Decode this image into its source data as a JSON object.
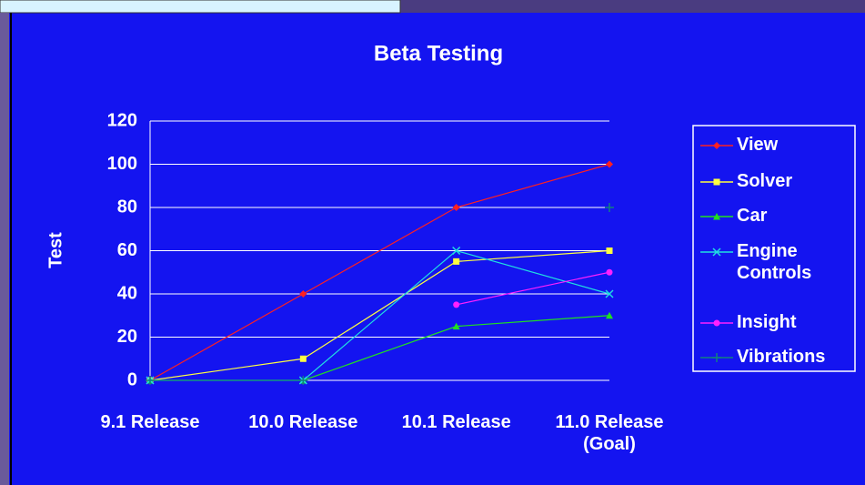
{
  "chart_data": {
    "type": "line",
    "title": "Beta Testing",
    "y_label": "Test",
    "categories": [
      "9.1 Release",
      "10.0 Release",
      "10.1 Release",
      "11.0 Release (Goal)"
    ],
    "series": [
      {
        "name": "View",
        "color": "#ff2020",
        "marker": "diamond",
        "values": [
          0,
          40,
          80,
          100
        ]
      },
      {
        "name": "Solver",
        "color": "#ffff40",
        "marker": "square",
        "values": [
          0,
          10,
          55,
          60
        ]
      },
      {
        "name": "Car",
        "color": "#20e020",
        "marker": "triangle",
        "values": [
          0,
          0,
          25,
          30
        ]
      },
      {
        "name": "Engine Controls",
        "color": "#20e0e0",
        "marker": "x",
        "values": [
          0,
          0,
          60,
          40
        ]
      },
      {
        "name": "Insight",
        "color": "#ff20ff",
        "marker": "circle",
        "values": [
          null,
          null,
          35,
          50
        ]
      },
      {
        "name": "Vibrations",
        "color": "#108080",
        "marker": "plus",
        "values": [
          0,
          0,
          null,
          80
        ]
      }
    ],
    "ylim": [
      0,
      120
    ],
    "yticks": [
      0,
      20,
      40,
      60,
      80,
      100,
      120
    ],
    "grid": true,
    "legend": "right"
  }
}
